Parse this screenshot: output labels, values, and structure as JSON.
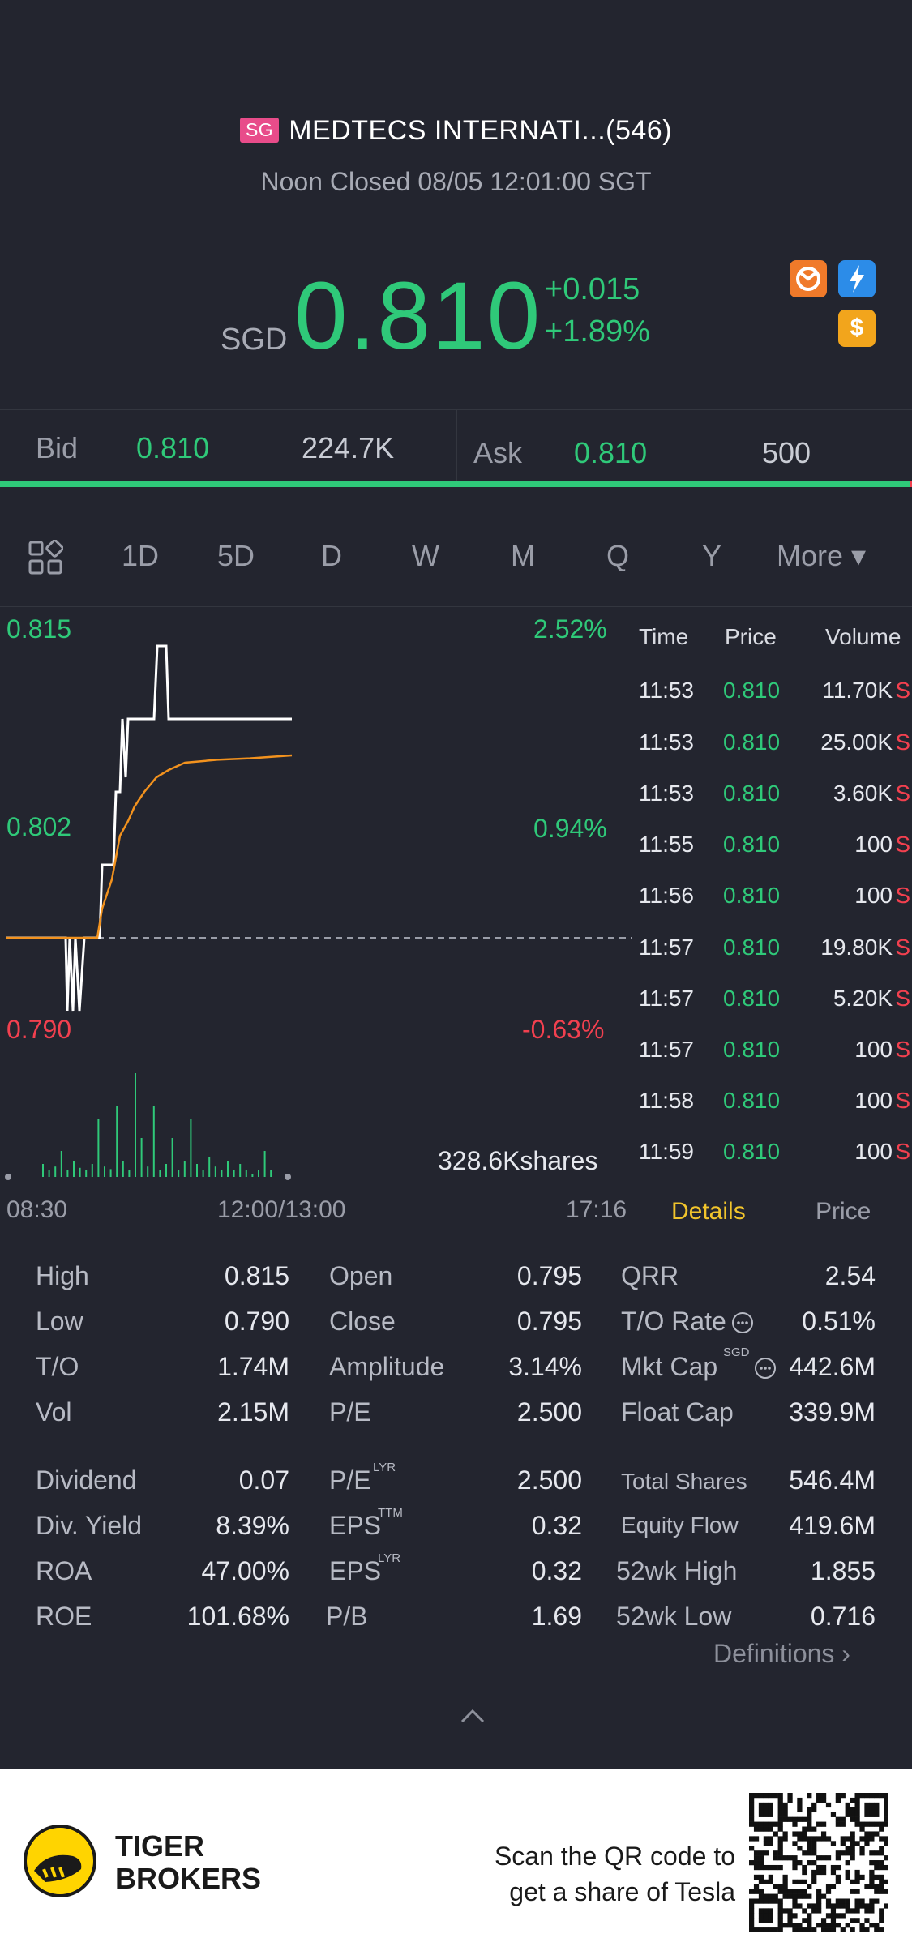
{
  "header": {
    "market_badge": "SG",
    "title": "MEDTECS INTERNATI...(546)",
    "status": "Noon Closed 08/05 12:01:00 SGT",
    "currency": "SGD",
    "price": "0.810",
    "change": "+0.015",
    "change_pct": "+1.89%",
    "icons": [
      "refresh-coin-icon",
      "lightning-level1-icon",
      "dollar-icon"
    ]
  },
  "quote": {
    "bid_label": "Bid",
    "bid_price": "0.810",
    "bid_size": "224.7K",
    "ask_label": "Ask",
    "ask_price": "0.810",
    "ask_size": "500"
  },
  "period_tabs": {
    "grid_icon": "grid-icon",
    "items": [
      "1D",
      "5D",
      "D",
      "W",
      "M",
      "Q",
      "Y",
      "More ▾"
    ],
    "active": "1D"
  },
  "chart_data": {
    "type": "line",
    "y_left_labels": [
      "0.815",
      "0.802",
      "0.790"
    ],
    "y_right_labels": [
      "2.52%",
      "0.94%",
      "-0.63%"
    ],
    "ylim": [
      0.79,
      0.815
    ],
    "prev_close": 0.795,
    "volume_label": "328.6Kshares",
    "x_labels": [
      "08:30",
      "12:00/13:00",
      "17:16"
    ],
    "series": [
      {
        "color": "#ffffff",
        "points": [
          [
            0,
            0.795
          ],
          [
            65,
            0.795
          ],
          [
            73,
            0.795
          ],
          [
            75,
            0.79
          ],
          [
            78,
            0.795
          ],
          [
            82,
            0.79
          ],
          [
            85,
            0.795
          ],
          [
            90,
            0.79
          ],
          [
            96,
            0.795
          ],
          [
            115,
            0.795
          ],
          [
            118,
            0.8
          ],
          [
            132,
            0.8
          ],
          [
            135,
            0.805
          ],
          [
            140,
            0.805
          ],
          [
            143,
            0.81
          ],
          [
            147,
            0.806
          ],
          [
            150,
            0.81
          ],
          [
            182,
            0.81
          ],
          [
            186,
            0.815
          ],
          [
            197,
            0.815
          ],
          [
            200,
            0.81
          ],
          [
            352,
            0.81
          ]
        ]
      },
      {
        "color": "#f2921e",
        "points": [
          [
            0,
            0.795
          ],
          [
            112,
            0.795
          ],
          [
            118,
            0.797
          ],
          [
            130,
            0.799
          ],
          [
            140,
            0.802
          ],
          [
            150,
            0.803
          ],
          [
            158,
            0.804
          ],
          [
            170,
            0.805
          ],
          [
            185,
            0.806
          ],
          [
            200,
            0.8065
          ],
          [
            220,
            0.807
          ],
          [
            260,
            0.8072
          ],
          [
            300,
            0.8073
          ],
          [
            352,
            0.8075
          ]
        ]
      }
    ],
    "volume_bars": [
      0.1,
      0.05,
      0.08,
      0.2,
      0.05,
      0.12,
      0.07,
      0.05,
      0.1,
      0.45,
      0.08,
      0.06,
      0.55,
      0.12,
      0.05,
      0.8,
      0.3,
      0.08,
      0.55,
      0.05,
      0.1,
      0.3,
      0.05,
      0.12,
      0.45,
      0.1,
      0.05,
      0.15,
      0.08,
      0.05,
      0.12,
      0.05,
      0.1,
      0.05,
      0.02,
      0.05,
      0.2,
      0.05
    ]
  },
  "trades": {
    "headers": [
      "Time",
      "Price",
      "Volume"
    ],
    "rows": [
      [
        "11:53",
        "0.810",
        "11.70K",
        "S"
      ],
      [
        "11:53",
        "0.810",
        "25.00K",
        "S"
      ],
      [
        "11:53",
        "0.810",
        "3.60K",
        "S"
      ],
      [
        "11:55",
        "0.810",
        "100",
        "S"
      ],
      [
        "11:56",
        "0.810",
        "100",
        "S"
      ],
      [
        "11:57",
        "0.810",
        "19.80K",
        "S"
      ],
      [
        "11:57",
        "0.810",
        "5.20K",
        "S"
      ],
      [
        "11:57",
        "0.810",
        "100",
        "S"
      ],
      [
        "11:58",
        "0.810",
        "100",
        "S"
      ],
      [
        "11:59",
        "0.810",
        "100",
        "S"
      ]
    ],
    "tab_details": "Details",
    "tab_price": "Price"
  },
  "stats": {
    "col1": [
      [
        "High",
        "0.815"
      ],
      [
        "Low",
        "0.790"
      ],
      [
        "T/O",
        "1.74M"
      ],
      [
        "Vol",
        "2.15M"
      ],
      [
        "Dividend",
        "0.07"
      ],
      [
        "Div. Yield",
        "8.39%"
      ],
      [
        "ROA",
        "47.00%"
      ],
      [
        "ROE",
        "101.68%"
      ]
    ],
    "col2": [
      [
        "Open",
        "0.795"
      ],
      [
        "Close",
        "0.795"
      ],
      [
        "Amplitude",
        "3.14%"
      ],
      [
        "P/E",
        "2.500"
      ],
      [
        "P/E",
        "2.500"
      ],
      [
        "EPS",
        "0.32"
      ],
      [
        "EPS",
        "0.32"
      ],
      [
        "P/B",
        "1.69"
      ]
    ],
    "col2_sup": [
      "",
      "",
      "",
      "",
      "LYR",
      "TTM",
      "LYR",
      ""
    ],
    "col3": [
      [
        "QRR",
        "2.54"
      ],
      [
        "T/O Rate",
        "0.51%"
      ],
      [
        "Mkt Cap",
        "442.6M"
      ],
      [
        "Float Cap",
        "339.9M"
      ],
      [
        "Total Shares",
        "546.4M"
      ],
      [
        "Equity Flow",
        "419.6M"
      ],
      [
        "52wk High",
        "1.855"
      ],
      [
        "52wk Low",
        "0.716"
      ]
    ],
    "mkt_cap_sup": "SGD",
    "definitions": "Definitions"
  },
  "footer": {
    "brand_line1": "TIGER",
    "brand_line2": "BROKERS",
    "cta_line1": "Scan the QR code to",
    "cta_line2": "get a share of Tesla"
  }
}
